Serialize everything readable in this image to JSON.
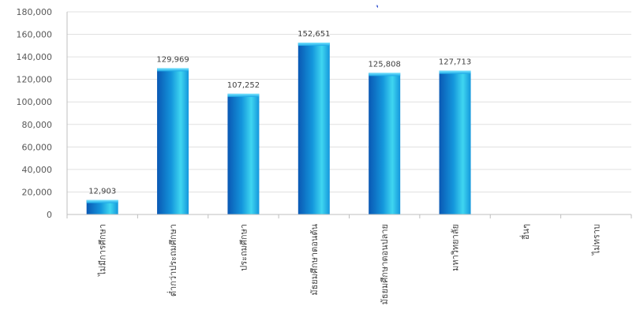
{
  "chart_data": {
    "type": "bar",
    "title_fragment": "ุ",
    "categories": [
      "ไม่มีการศึกษา",
      "ต่ำกว่าประถมศึกษา",
      "ประถมศึกษา",
      "มัธยมศึกษาตอนต้น",
      "มัธยมศึกษาตอนปลาย",
      "มหาวิทยาลัย",
      "อื่นๆ",
      "ไม่ทราบ"
    ],
    "values": [
      12903,
      129969,
      107252,
      152651,
      125808,
      127713,
      null,
      null
    ],
    "data_labels": [
      "12,903",
      "129,969",
      "107,252",
      "152,651",
      "125,808",
      "127,713",
      "",
      ""
    ],
    "ylim": [
      0,
      180000
    ],
    "yticks": [
      0,
      20000,
      40000,
      60000,
      80000,
      100000,
      120000,
      140000,
      160000,
      180000
    ],
    "ytick_labels": [
      "0",
      "20,000",
      "40,000",
      "60,000",
      "80,000",
      "100,000",
      "120,000",
      "140,000",
      "160,000",
      "180,000"
    ],
    "grid": true,
    "colors": {
      "bar_light": "#3fd6f0",
      "bar_mid": "#1496dc",
      "bar_dark": "#0a58b4",
      "grid": "#e0e0e0",
      "axis": "#bfbfbf"
    }
  }
}
